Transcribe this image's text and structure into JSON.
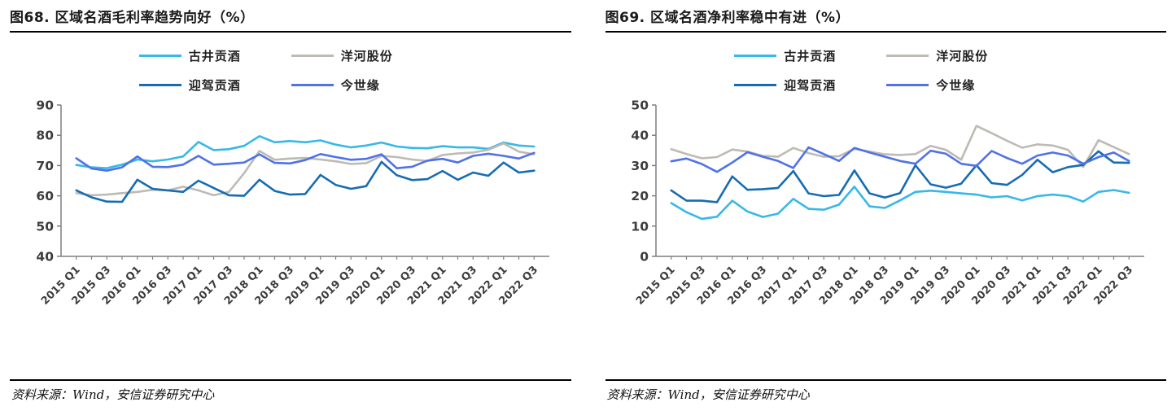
{
  "figures": [
    {
      "title": "图68. 区域名酒毛利率趋势向好（%）",
      "source": "资料来源：Wind，安信证券研究中心"
    },
    {
      "title": "图69. 区域名酒净利率稳中有进（%）",
      "source": "资料来源：Wind，安信证券研究中心"
    }
  ],
  "chart_data": [
    {
      "type": "line",
      "title": "图68. 区域名酒毛利率趋势向好（%）",
      "x": [
        "2015 Q1",
        "2015 Q2",
        "2015 Q3",
        "2015 Q4",
        "2016 Q1",
        "2016 Q2",
        "2016 Q3",
        "2016 Q4",
        "2017 Q1",
        "2017 Q2",
        "2017 Q3",
        "2017 Q4",
        "2018 Q1",
        "2018 Q2",
        "2018 Q3",
        "2018 Q4",
        "2019 Q1",
        "2019 Q2",
        "2019 Q3",
        "2019 Q4",
        "2020 Q1",
        "2020 Q2",
        "2020 Q3",
        "2020 Q4",
        "2021 Q1",
        "2021 Q2",
        "2021 Q3",
        "2021 Q4",
        "2022 Q1",
        "2022 Q2",
        "2022 Q3"
      ],
      "x_tick_labels": [
        "2015 Q1",
        "2015 Q3",
        "2016 Q1",
        "2016 Q3",
        "2017 Q1",
        "2017 Q3",
        "2018 Q1",
        "2018 Q3",
        "2019 Q1",
        "2019 Q3",
        "2020 Q1",
        "2020 Q3",
        "2021 Q1",
        "2021 Q3",
        "2022 Q1",
        "2022 Q3"
      ],
      "x_label_every": 2,
      "ylim": [
        40,
        90
      ],
      "yticks": [
        40,
        50,
        60,
        70,
        80,
        90
      ],
      "grid": false,
      "legend_position": "top-center",
      "axis_color": "#7f7f7f",
      "series": [
        {
          "name": "古井贡酒",
          "color": "#38B8E6",
          "values": [
            70.2,
            69.4,
            69.1,
            70.3,
            72.0,
            71.4,
            72.0,
            73.0,
            77.8,
            75.1,
            75.4,
            76.5,
            79.7,
            77.7,
            78.1,
            77.7,
            78.3,
            76.9,
            76.0,
            76.6,
            77.6,
            76.3,
            75.8,
            75.7,
            76.4,
            76.0,
            76.0,
            75.5,
            77.6,
            76.6,
            76.3
          ]
        },
        {
          "name": "洋河股份",
          "color": "#BEBAB4",
          "values": [
            60.9,
            60.2,
            60.4,
            60.9,
            61.3,
            62.0,
            61.8,
            63.0,
            61.8,
            60.2,
            61.3,
            67.5,
            74.8,
            71.9,
            72.3,
            72.5,
            72.0,
            71.4,
            70.5,
            70.8,
            73.2,
            72.8,
            72.0,
            71.5,
            73.5,
            74.0,
            74.3,
            75.2,
            77.3,
            74.6,
            73.7
          ]
        },
        {
          "name": "迎驾贡酒",
          "color": "#176CB2",
          "values": [
            61.8,
            59.5,
            58.1,
            58.0,
            65.3,
            62.3,
            61.8,
            61.3,
            65.0,
            62.6,
            60.2,
            60.0,
            65.3,
            61.6,
            60.4,
            60.6,
            66.9,
            63.6,
            62.3,
            63.2,
            71.2,
            66.8,
            65.2,
            65.5,
            68.2,
            65.3,
            67.7,
            66.6,
            71.0,
            67.7,
            68.3
          ]
        },
        {
          "name": "今世缘",
          "color": "#5072E8",
          "values": [
            72.4,
            69.0,
            68.3,
            69.4,
            73.0,
            69.6,
            69.5,
            70.3,
            73.2,
            70.3,
            70.6,
            71.0,
            73.7,
            70.9,
            70.7,
            71.8,
            73.8,
            72.8,
            71.9,
            72.2,
            73.7,
            69.1,
            69.6,
            71.6,
            72.2,
            71.0,
            73.2,
            73.9,
            73.2,
            72.3,
            74.2
          ]
        }
      ]
    },
    {
      "type": "line",
      "title": "图69. 区域名酒净利率稳中有进（%）",
      "x": [
        "2015 Q1",
        "2015 Q2",
        "2015 Q3",
        "2015 Q4",
        "2016 Q1",
        "2016 Q2",
        "2016 Q3",
        "2016 Q4",
        "2017 Q1",
        "2017 Q2",
        "2017 Q3",
        "2017 Q4",
        "2018 Q1",
        "2018 Q2",
        "2018 Q3",
        "2018 Q4",
        "2019 Q1",
        "2019 Q2",
        "2019 Q3",
        "2019 Q4",
        "2020 Q1",
        "2020 Q2",
        "2020 Q3",
        "2020 Q4",
        "2021 Q1",
        "2021 Q2",
        "2021 Q3",
        "2021 Q4",
        "2022 Q1",
        "2022 Q2",
        "2022 Q3"
      ],
      "x_tick_labels": [
        "2015 Q1",
        "2015 Q3",
        "2016 Q1",
        "2016 Q3",
        "2017 Q1",
        "2017 Q3",
        "2018 Q1",
        "2018 Q3",
        "2019 Q1",
        "2019 Q3",
        "2020 Q1",
        "2020 Q3",
        "2021 Q1",
        "2021 Q3",
        "2022 Q1",
        "2022 Q3"
      ],
      "x_label_every": 2,
      "ylim": [
        0,
        50
      ],
      "yticks": [
        0,
        10,
        20,
        30,
        40,
        50
      ],
      "grid": false,
      "legend_position": "top-center",
      "axis_color": "#7f7f7f",
      "series": [
        {
          "name": "古井贡酒",
          "color": "#38B8E6",
          "values": [
            17.6,
            14.6,
            12.4,
            13.1,
            18.4,
            14.8,
            13.0,
            14.1,
            19.0,
            15.7,
            15.4,
            17.1,
            23.0,
            16.5,
            16.0,
            18.5,
            21.3,
            21.7,
            21.3,
            20.8,
            20.4,
            19.5,
            19.9,
            18.5,
            19.9,
            20.4,
            19.9,
            18.1,
            21.3,
            21.9,
            21.0
          ]
        },
        {
          "name": "洋河股份",
          "color": "#BEBAB4",
          "values": [
            35.4,
            33.8,
            32.4,
            32.8,
            35.3,
            34.6,
            33.2,
            32.9,
            35.8,
            34.1,
            32.9,
            33.1,
            35.5,
            34.6,
            33.7,
            33.5,
            33.8,
            36.5,
            35.2,
            31.9,
            43.1,
            40.7,
            38.2,
            35.9,
            37.0,
            36.6,
            35.2,
            29.5,
            38.4,
            36.1,
            33.8
          ]
        },
        {
          "name": "迎驾贡酒",
          "color": "#176CB2",
          "values": [
            21.8,
            18.4,
            18.4,
            17.9,
            26.4,
            22.0,
            22.2,
            22.6,
            28.2,
            20.8,
            19.9,
            20.3,
            28.4,
            20.8,
            19.4,
            20.9,
            30.1,
            23.8,
            22.7,
            24.0,
            30.1,
            24.2,
            23.6,
            26.9,
            31.9,
            27.8,
            29.5,
            30.2,
            34.7,
            31.0,
            30.9
          ]
        },
        {
          "name": "今世缘",
          "color": "#5072E8",
          "values": [
            31.4,
            32.3,
            30.5,
            27.9,
            31.0,
            34.4,
            32.9,
            31.5,
            29.2,
            36.0,
            33.8,
            31.5,
            35.8,
            34.3,
            32.9,
            31.5,
            30.6,
            34.9,
            33.9,
            30.6,
            29.9,
            34.8,
            32.5,
            30.6,
            33.3,
            34.3,
            33.3,
            30.6,
            32.8,
            34.3,
            31.5
          ]
        }
      ]
    }
  ]
}
